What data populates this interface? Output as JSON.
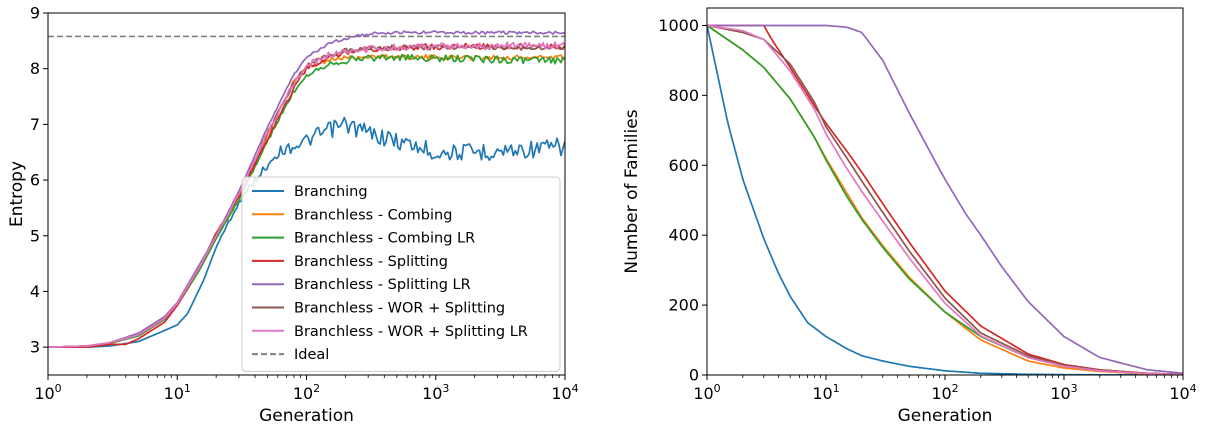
{
  "colors": {
    "Branching": "#1f77b4",
    "Branchless - Combing": "#ff7f0e",
    "Branchless - Combing LR": "#2ca02c",
    "Branchless - Splitting": "#d62728",
    "Branchless - Splitting LR": "#9467bd",
    "Branchless - WOR + Splitting": "#8c564b",
    "Branchless - WOR + Splitting LR": "#e377c2",
    "Ideal": "#808080"
  },
  "chart_data": [
    {
      "type": "line",
      "xlabel": "Generation",
      "ylabel": "Entropy",
      "xscale": "log",
      "xlim": [
        1,
        10000
      ],
      "ylim": [
        2.5,
        9
      ],
      "xticks": [
        1,
        10,
        100,
        1000,
        10000
      ],
      "xtick_labels": [
        [
          "10",
          "0"
        ],
        [
          "10",
          "1"
        ],
        [
          "10",
          "2"
        ],
        [
          "10",
          "3"
        ],
        [
          "10",
          "4"
        ]
      ],
      "yticks": [
        3,
        4,
        5,
        6,
        7,
        8,
        9
      ],
      "ytick_labels": [
        "3",
        "4",
        "5",
        "6",
        "7",
        "8",
        "9"
      ],
      "legend_position": "lower-right",
      "legend": [
        "Branching",
        "Branchless - Combing",
        "Branchless - Combing LR",
        "Branchless - Splitting",
        "Branchless - Splitting LR",
        "Branchless - WOR + Splitting",
        "Branchless - WOR + Splitting LR",
        "Ideal"
      ],
      "reference_line": {
        "name": "Ideal",
        "y": 8.58,
        "style": "dashed"
      },
      "series": [
        {
          "name": "Branching",
          "x": [
            1,
            2,
            3,
            5,
            8,
            10,
            12,
            16,
            20,
            30,
            40,
            60,
            100,
            150,
            200,
            300,
            500,
            1000,
            2000,
            5000,
            10000
          ],
          "y": [
            3.0,
            3.0,
            3.02,
            3.1,
            3.3,
            3.4,
            3.6,
            4.2,
            4.8,
            5.6,
            6.0,
            6.5,
            6.7,
            6.9,
            7.0,
            6.85,
            6.7,
            6.5,
            6.5,
            6.55,
            6.6
          ]
        },
        {
          "name": "Branchless - Combing",
          "x": [
            1,
            2,
            3,
            5,
            8,
            10,
            15,
            20,
            30,
            50,
            80,
            100,
            150,
            200,
            300,
            500,
            1000,
            2000,
            5000,
            10000
          ],
          "y": [
            3.0,
            3.02,
            3.07,
            3.2,
            3.5,
            3.75,
            4.4,
            4.95,
            5.7,
            6.8,
            7.8,
            8.0,
            8.15,
            8.2,
            8.22,
            8.22,
            8.2,
            8.2,
            8.2,
            8.2
          ]
        },
        {
          "name": "Branchless - Combing LR",
          "x": [
            1,
            2,
            3,
            5,
            8,
            10,
            15,
            20,
            30,
            50,
            80,
            100,
            150,
            200,
            300,
            500,
            1000,
            2000,
            5000,
            10000
          ],
          "y": [
            3.0,
            3.02,
            3.07,
            3.2,
            3.5,
            3.75,
            4.4,
            4.95,
            5.65,
            6.7,
            7.6,
            7.9,
            8.1,
            8.15,
            8.2,
            8.2,
            8.18,
            8.18,
            8.15,
            8.15
          ]
        },
        {
          "name": "Branchless - Splitting",
          "x": [
            1,
            2,
            3,
            4,
            5,
            8,
            10,
            15,
            20,
            30,
            50,
            80,
            100,
            150,
            200,
            300,
            500,
            1000,
            2000,
            5000,
            10000
          ],
          "y": [
            3.0,
            3.0,
            3.05,
            3.05,
            3.15,
            3.45,
            3.75,
            4.45,
            5.05,
            5.7,
            6.75,
            7.65,
            8.0,
            8.2,
            8.3,
            8.35,
            8.38,
            8.4,
            8.4,
            8.4,
            8.4
          ]
        },
        {
          "name": "Branchless - Splitting LR",
          "x": [
            1,
            2,
            3,
            5,
            8,
            10,
            15,
            20,
            30,
            50,
            80,
            100,
            150,
            200,
            300,
            500,
            1000,
            2000,
            5000,
            10000
          ],
          "y": [
            3.0,
            3.02,
            3.08,
            3.25,
            3.55,
            3.8,
            4.5,
            5.0,
            5.8,
            6.95,
            7.9,
            8.2,
            8.45,
            8.55,
            8.62,
            8.65,
            8.65,
            8.65,
            8.65,
            8.65
          ]
        },
        {
          "name": "Branchless - WOR + Splitting",
          "x": [
            1,
            2,
            3,
            5,
            8,
            10,
            15,
            20,
            30,
            50,
            80,
            100,
            150,
            200,
            300,
            500,
            1000,
            2000,
            5000,
            10000
          ],
          "y": [
            3.0,
            3.02,
            3.08,
            3.22,
            3.52,
            3.78,
            4.45,
            5.0,
            5.75,
            6.85,
            7.75,
            8.05,
            8.25,
            8.32,
            8.36,
            8.38,
            8.38,
            8.38,
            8.38,
            8.38
          ]
        },
        {
          "name": "Branchless - WOR + Splitting LR",
          "x": [
            1,
            2,
            3,
            5,
            8,
            10,
            15,
            20,
            30,
            50,
            80,
            100,
            150,
            200,
            300,
            500,
            1000,
            2000,
            5000,
            10000
          ],
          "y": [
            3.0,
            3.02,
            3.08,
            3.22,
            3.52,
            3.78,
            4.45,
            5.0,
            5.75,
            6.85,
            7.75,
            8.05,
            8.25,
            8.32,
            8.36,
            8.38,
            8.4,
            8.4,
            8.42,
            8.42
          ]
        }
      ]
    },
    {
      "type": "line",
      "xlabel": "Generation",
      "ylabel": "Number of Families",
      "xscale": "log",
      "xlim": [
        1,
        10000
      ],
      "ylim": [
        0,
        1050
      ],
      "xticks": [
        1,
        10,
        100,
        1000,
        10000
      ],
      "xtick_labels": [
        [
          "10",
          "0"
        ],
        [
          "10",
          "1"
        ],
        [
          "10",
          "2"
        ],
        [
          "10",
          "3"
        ],
        [
          "10",
          "4"
        ]
      ],
      "yticks": [
        0,
        200,
        400,
        600,
        800,
        1000
      ],
      "ytick_labels": [
        "0",
        "200",
        "400",
        "600",
        "800",
        "1000"
      ],
      "series": [
        {
          "name": "Branching",
          "x": [
            1,
            1.5,
            2,
            3,
            4,
            5,
            7,
            10,
            15,
            20,
            30,
            50,
            100,
            200,
            500,
            1000,
            10000
          ],
          "y": [
            1000,
            720,
            560,
            390,
            290,
            225,
            150,
            110,
            75,
            55,
            40,
            25,
            12,
            5,
            2,
            1,
            0
          ]
        },
        {
          "name": "Branchless - Combing",
          "x": [
            1,
            2,
            3,
            5,
            8,
            10,
            15,
            20,
            30,
            50,
            100,
            200,
            500,
            1000,
            2000,
            5000,
            10000
          ],
          "y": [
            1000,
            930,
            880,
            790,
            680,
            620,
            520,
            450,
            370,
            280,
            180,
            100,
            40,
            20,
            10,
            3,
            1
          ]
        },
        {
          "name": "Branchless - Combing LR",
          "x": [
            1,
            2,
            3,
            5,
            8,
            10,
            15,
            20,
            30,
            50,
            100,
            200,
            500,
            1000,
            2000,
            5000,
            10000
          ],
          "y": [
            1000,
            930,
            880,
            790,
            680,
            615,
            510,
            445,
            365,
            275,
            180,
            110,
            50,
            25,
            12,
            4,
            1
          ]
        },
        {
          "name": "Branchless - Splitting",
          "x": [
            1,
            2,
            3,
            3.5,
            5,
            8,
            10,
            15,
            20,
            30,
            50,
            100,
            200,
            500,
            1000,
            2000,
            5000,
            10000
          ],
          "y": [
            1000,
            1000,
            1000,
            960,
            880,
            770,
            720,
            640,
            580,
            490,
            380,
            240,
            140,
            60,
            30,
            15,
            5,
            2
          ]
        },
        {
          "name": "Branchless - Splitting LR",
          "x": [
            1,
            5,
            10,
            15,
            20,
            30,
            50,
            80,
            100,
            150,
            200,
            300,
            500,
            1000,
            2000,
            5000,
            10000
          ],
          "y": [
            1000,
            1000,
            1000,
            995,
            980,
            900,
            750,
            620,
            560,
            460,
            400,
            310,
            210,
            110,
            50,
            15,
            5
          ]
        },
        {
          "name": "Branchless - WOR + Splitting",
          "x": [
            1,
            2,
            3,
            5,
            8,
            10,
            15,
            20,
            30,
            50,
            100,
            200,
            500,
            1000,
            2000,
            5000,
            10000
          ],
          "y": [
            1000,
            980,
            960,
            890,
            780,
            710,
            620,
            555,
            465,
            355,
            220,
            120,
            55,
            28,
            14,
            5,
            2
          ]
        },
        {
          "name": "Branchless - WOR + Splitting LR",
          "x": [
            1,
            2,
            3,
            5,
            8,
            10,
            15,
            20,
            30,
            50,
            100,
            200,
            500,
            1000,
            2000,
            5000,
            10000
          ],
          "y": [
            1000,
            985,
            960,
            870,
            760,
            690,
            590,
            525,
            440,
            335,
            205,
            112,
            50,
            25,
            12,
            4,
            1
          ]
        }
      ]
    }
  ]
}
